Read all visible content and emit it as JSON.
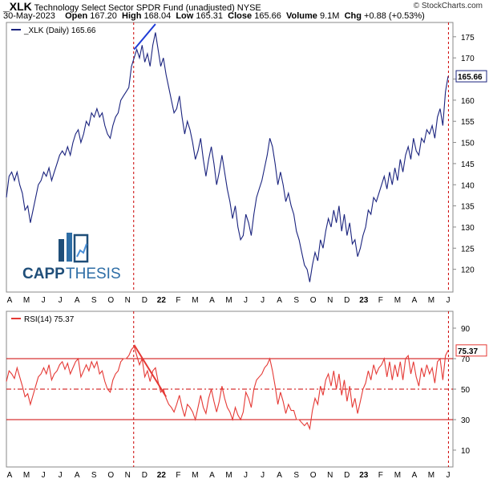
{
  "header": {
    "symbol": "_XLK",
    "name": "Technology Select Sector SPDR Fund (unadjusted)",
    "exchange": "NYSE",
    "date": "30-May-2023",
    "open_label": "Open",
    "open": "167.20",
    "high_label": "High",
    "high": "168.04",
    "low_label": "Low",
    "low": "165.31",
    "close_label": "Close",
    "close": "165.66",
    "volume_label": "Volume",
    "volume": "9.1M",
    "chg_label": "Chg",
    "chg": "+0.88 (+0.53%)",
    "credit": "© StockCharts.com"
  },
  "logo": {
    "text_bold": "CAPP",
    "text_light": "THESIS"
  },
  "colors": {
    "price": "#1a237e",
    "rsi": "#e53935",
    "grid": "#cc0000",
    "trend_price": "#1e3bd6"
  },
  "chart_data": [
    {
      "type": "line",
      "title": "_XLK (Daily) 165.66",
      "ylim": [
        115,
        178
      ],
      "yticks": [
        120,
        125,
        130,
        135,
        140,
        145,
        150,
        155,
        160,
        165,
        170,
        175
      ],
      "last_value_label": "165.66",
      "x_labels": [
        "A",
        "M",
        "J",
        "J",
        "A",
        "S",
        "O",
        "N",
        "D",
        "22",
        "F",
        "M",
        "A",
        "M",
        "J",
        "J",
        "A",
        "S",
        "O",
        "N",
        "D",
        "23",
        "F",
        "M",
        "A",
        "M",
        "J"
      ],
      "series": [
        {
          "name": "_XLK (Daily)",
          "values": [
            137,
            142,
            143,
            141,
            143,
            140,
            138,
            134,
            135,
            131,
            134,
            137,
            140,
            141,
            143,
            142,
            144,
            141,
            143,
            145,
            147,
            148,
            147,
            149,
            147,
            150,
            152,
            153,
            150,
            152,
            155,
            154,
            157,
            156,
            158,
            156,
            157,
            154,
            152,
            151,
            154,
            156,
            157,
            160,
            161,
            162,
            163,
            168,
            170,
            172,
            170,
            173,
            169,
            171,
            168,
            173,
            176,
            172,
            168,
            170,
            166,
            163,
            160,
            157,
            158,
            161,
            156,
            152,
            155,
            153,
            150,
            146,
            148,
            151,
            146,
            142,
            146,
            149,
            145,
            140,
            143,
            147,
            143,
            139,
            136,
            132,
            135,
            130,
            127,
            128,
            133,
            131,
            128,
            133,
            137,
            139,
            141,
            144,
            147,
            151,
            149,
            145,
            140,
            143,
            140,
            136,
            138,
            135,
            133,
            129,
            127,
            124,
            121,
            120,
            117,
            121,
            124,
            122,
            127,
            125,
            129,
            132,
            130,
            134,
            131,
            135,
            129,
            133,
            128,
            131,
            126,
            127,
            123,
            125,
            128,
            130,
            134,
            133,
            137,
            136,
            138,
            140,
            142,
            139,
            143,
            140,
            144,
            141,
            146,
            143,
            147,
            149,
            146,
            151,
            148,
            147,
            151,
            150,
            153,
            152,
            154,
            151,
            156,
            158,
            154,
            162,
            165.66
          ]
        }
      ],
      "annotations": [
        {
          "type": "trendline",
          "from_index": 48,
          "to_index": 56
        }
      ]
    },
    {
      "type": "line",
      "title": "RSI(14) 75.37",
      "ylim": [
        0,
        100
      ],
      "yticks": [
        10,
        30,
        50,
        70,
        90
      ],
      "reference_lines": [
        30,
        50,
        70
      ],
      "last_value_label": "75.37",
      "x_labels": [
        "A",
        "M",
        "J",
        "J",
        "A",
        "S",
        "O",
        "N",
        "D",
        "22",
        "F",
        "M",
        "A",
        "M",
        "J",
        "J",
        "A",
        "S",
        "O",
        "N",
        "D",
        "23",
        "F",
        "M",
        "A",
        "M",
        "J"
      ],
      "series": [
        {
          "name": "RSI(14)",
          "values": [
            55,
            62,
            60,
            57,
            64,
            58,
            52,
            45,
            47,
            40,
            46,
            52,
            58,
            60,
            64,
            60,
            66,
            56,
            60,
            62,
            66,
            68,
            63,
            67,
            60,
            64,
            68,
            70,
            58,
            62,
            66,
            62,
            68,
            64,
            68,
            60,
            62,
            55,
            50,
            48,
            56,
            60,
            62,
            68,
            70,
            70,
            72,
            76,
            78,
            72,
            66,
            70,
            58,
            62,
            55,
            62,
            64,
            55,
            48,
            50,
            44,
            40,
            38,
            35,
            40,
            46,
            38,
            32,
            40,
            38,
            35,
            30,
            38,
            46,
            38,
            34,
            44,
            50,
            42,
            35,
            42,
            52,
            44,
            38,
            35,
            30,
            38,
            33,
            30,
            35,
            48,
            44,
            38,
            50,
            56,
            58,
            60,
            64,
            66,
            70,
            62,
            52,
            40,
            48,
            42,
            34,
            40,
            36,
            36,
            30,
            30,
            28,
            26,
            28,
            24,
            36,
            44,
            40,
            52,
            46,
            56,
            60,
            52,
            62,
            50,
            60,
            46,
            56,
            42,
            52,
            38,
            44,
            34,
            42,
            50,
            54,
            62,
            56,
            66,
            60,
            64,
            66,
            70,
            58,
            68,
            56,
            66,
            58,
            68,
            56,
            70,
            72,
            60,
            68,
            58,
            52,
            64,
            58,
            66,
            60,
            64,
            54,
            68,
            70,
            56,
            72,
            75.37
          ]
        }
      ],
      "annotations": [
        {
          "type": "trendline",
          "from_index": 48,
          "to_index": 60
        }
      ]
    }
  ]
}
